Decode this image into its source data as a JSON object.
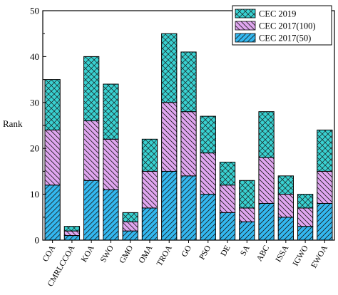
{
  "chart_data": {
    "type": "bar",
    "stacked": true,
    "title": "",
    "xlabel": "",
    "ylabel": "Rank",
    "ylim": [
      0,
      50
    ],
    "yticks": [
      0,
      10,
      20,
      30,
      40,
      50
    ],
    "grid": false,
    "legend_position": "top-right",
    "categories": [
      "COA",
      "CMRLCCOA",
      "KOA",
      "SWO",
      "GMO",
      "OMA",
      "TROA",
      "GO",
      "PSO",
      "DE",
      "SA",
      "ABC",
      "ISSA",
      "IGWO",
      "EWOA"
    ],
    "series": [
      {
        "name": "CEC 2017(50)",
        "values": [
          12,
          1,
          13,
          11,
          2,
          7,
          15,
          14,
          10,
          6,
          4,
          8,
          5,
          3,
          8
        ],
        "color": "#33b8f0",
        "pattern": "diag-right"
      },
      {
        "name": "CEC 2017(100)",
        "values": [
          12,
          1,
          13,
          11,
          2,
          8,
          15,
          14,
          9,
          6,
          3,
          10,
          5,
          4,
          7
        ],
        "color": "#e0a6f0",
        "pattern": "diag-left"
      },
      {
        "name": "CEC 2019",
        "values": [
          11,
          1,
          14,
          12,
          2,
          7,
          15,
          13,
          8,
          5,
          6,
          10,
          4,
          3,
          9
        ],
        "color": "#38d1d1",
        "pattern": "crosshatch"
      }
    ]
  }
}
